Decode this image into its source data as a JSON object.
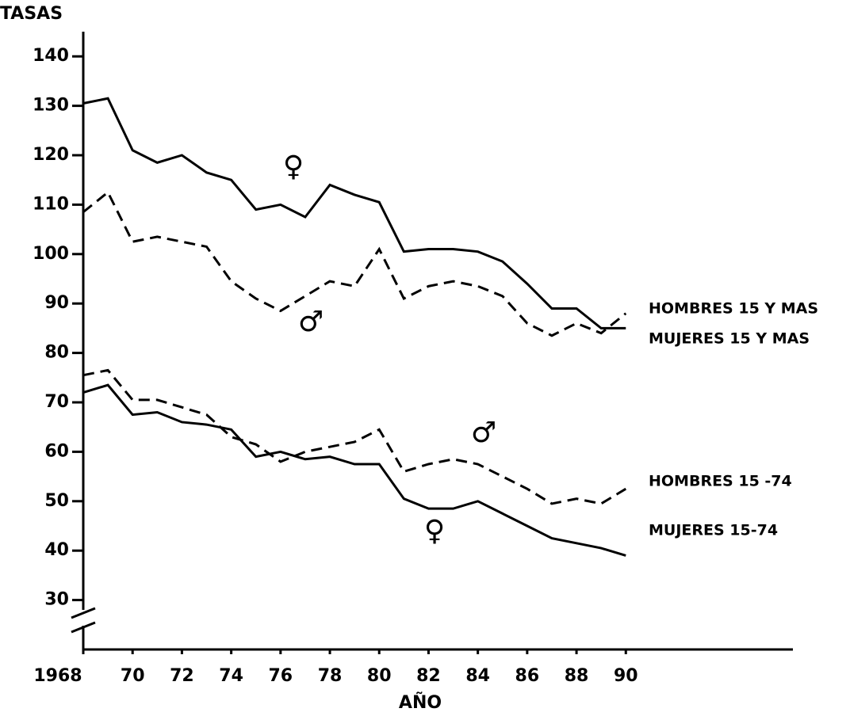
{
  "chart_data": {
    "type": "line",
    "y_label": "TASAS",
    "x_label": "AÑO",
    "x": [
      1968,
      1969,
      1970,
      1971,
      1972,
      1973,
      1974,
      1975,
      1976,
      1977,
      1978,
      1979,
      1980,
      1981,
      1982,
      1983,
      1984,
      1985,
      1986,
      1987,
      1988,
      1989,
      1990
    ],
    "series": [
      {
        "name": "MUJERES 15 Y MAS",
        "color": "#000000",
        "style": "solid",
        "values": [
          130.5,
          131.5,
          121,
          118.5,
          120,
          116.5,
          115,
          109,
          110,
          107.5,
          114,
          112,
          110.5,
          100.5,
          101,
          101,
          100.5,
          98.5,
          94,
          89,
          89,
          85,
          85
        ]
      },
      {
        "name": "HOMBRES 15 Y MAS",
        "color": "#000000",
        "style": "dashed",
        "values": [
          108.5,
          112.5,
          102.5,
          103.5,
          102.5,
          101.5,
          94.5,
          91,
          88.5,
          91.5,
          94.5,
          93.5,
          101,
          91,
          93.5,
          94.5,
          93.5,
          91.5,
          86,
          83.5,
          86,
          84,
          88
        ]
      },
      {
        "name": "HOMBRES 15 -74",
        "color": "#000000",
        "style": "dashed",
        "values": [
          75.5,
          76.5,
          70.5,
          70.5,
          69,
          67.5,
          63,
          61.5,
          58,
          60,
          61,
          62,
          64.5,
          56,
          57.5,
          58.5,
          57.5,
          55,
          52.5,
          49.5,
          50.5,
          49.5,
          52.5
        ]
      },
      {
        "name": "MUJERES 15-74",
        "color": "#000000",
        "style": "solid",
        "values": [
          72,
          73.5,
          67.5,
          68,
          66,
          65.5,
          64.5,
          59,
          60,
          58.5,
          59,
          57.5,
          57.5,
          50.5,
          48.5,
          48.5,
          50,
          47.5,
          45,
          42.5,
          41.5,
          40.5,
          39
        ]
      }
    ],
    "annotations": [
      "♀",
      "♂",
      "♂",
      "♀"
    ],
    "xlim": [
      1968,
      1997
    ],
    "ylim": [
      20,
      145
    ],
    "xticks": [
      1968,
      {
        "value": 1970,
        "label": "70"
      },
      {
        "value": 1972,
        "label": "72"
      },
      {
        "value": 1974,
        "label": "74"
      },
      {
        "value": 1976,
        "label": "76"
      },
      {
        "value": 1978,
        "label": "78"
      },
      {
        "value": 1980,
        "label": "80"
      },
      {
        "value": 1982,
        "label": "82"
      },
      {
        "value": 1984,
        "label": "84"
      },
      {
        "value": 1986,
        "label": "86"
      },
      {
        "value": 1988,
        "label": "88"
      },
      {
        "value": 1990,
        "label": "90"
      }
    ],
    "yticks": [
      30,
      40,
      50,
      60,
      70,
      80,
      90,
      100,
      110,
      120,
      130,
      140
    ],
    "grid": false
  }
}
